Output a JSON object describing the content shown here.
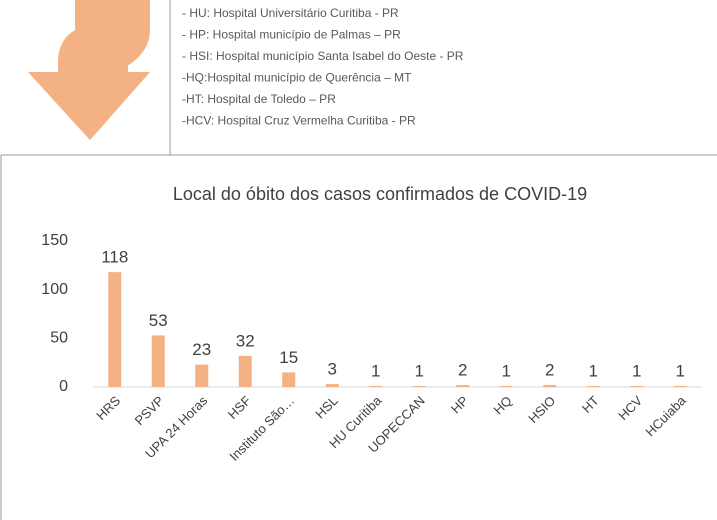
{
  "notes": [
    "- HU: Hospital Universitário Curitiba - PR",
    "- HP: Hospital município de Palmas – PR",
    "- HSI: Hospital município Santa Isabel do Oeste  - PR",
    "-HQ:Hospital município de Querência – MT",
    "-HT: Hospital de Toledo – PR",
    "-HCV: Hospital Cruz Vermelha Curitiba - PR"
  ],
  "chart_data": {
    "type": "bar",
    "title": "Local do óbito dos casos confirmados de COVID-19",
    "categories": [
      "HRS",
      "PSVP",
      "UPA 24 Horas",
      "HSF",
      "Instituto São…",
      "HSL",
      "HU Curitiba",
      "UOPECCAN",
      "HP",
      "HQ",
      "HSIO",
      "HT",
      "HCV",
      "HCuiaba"
    ],
    "values": [
      118,
      53,
      23,
      32,
      15,
      3,
      1,
      1,
      2,
      1,
      2,
      1,
      1,
      1
    ],
    "color": "#f4b183",
    "ylim": [
      0,
      150
    ],
    "yticks": [
      0,
      50,
      100,
      150
    ],
    "grid": false
  }
}
